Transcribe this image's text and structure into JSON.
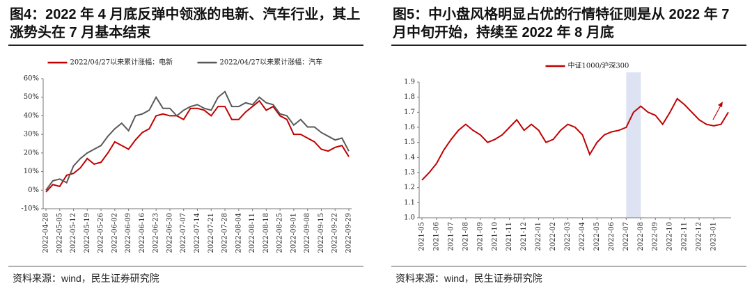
{
  "chart_data": [
    {
      "type": "line",
      "title": "图4：2022 年 4 月底反弹中领涨的电新、汽车行业，其上涨势头在 7 月基本结束",
      "source": "资料来源：wind，民生证券研究院",
      "categories": [
        "2022-04-28",
        null,
        "2022-05-05",
        null,
        "2022-05-12",
        null,
        "2022-05-19",
        null,
        "2022-05-26",
        null,
        "2022-06-02",
        null,
        "2022-06-09",
        null,
        "2022-06-16",
        null,
        "2022-06-23",
        null,
        "2022-06-30",
        null,
        "2022-07-07",
        null,
        "2022-07-14",
        null,
        "2022-07-21",
        null,
        "2022-07-28",
        null,
        "2022-08-04",
        null,
        "2022-08-11",
        null,
        "2022-08-18",
        null,
        "2022-08-25",
        null,
        "2022-09-01",
        null,
        "2022-09-08",
        null,
        "2022-09-15",
        null,
        "2022-09-22",
        null,
        "2022-09-29"
      ],
      "series": [
        {
          "name": "2022/04/27以来累计涨幅：电新",
          "color": "#c00000",
          "values": [
            -1,
            3,
            2,
            8,
            9,
            12,
            17,
            14,
            15,
            20,
            26,
            24,
            22,
            27,
            31,
            33,
            40,
            41,
            40,
            40,
            38,
            44,
            44,
            43,
            40,
            45,
            45,
            38,
            38,
            42,
            45,
            48,
            43,
            45,
            40,
            38,
            30,
            30,
            28,
            26,
            22,
            21,
            23,
            24,
            18
          ]
        },
        {
          "name": "2022/04/27以来累计涨幅：汽车",
          "color": "#595959",
          "values": [
            0,
            5,
            6,
            4,
            13,
            17,
            20,
            22,
            24,
            29,
            33,
            36,
            32,
            40,
            41,
            43,
            50,
            44,
            44,
            40,
            43,
            45,
            46,
            44,
            43,
            50,
            53,
            45,
            45,
            47,
            46,
            50,
            47,
            46,
            41,
            40,
            35,
            38,
            34,
            34,
            31,
            29,
            27,
            28,
            21
          ]
        }
      ],
      "ylim": [
        -10,
        60
      ],
      "yticks": [
        {
          "value": -10,
          "label": "-10%"
        },
        {
          "value": 0,
          "label": "0%"
        },
        {
          "value": 10,
          "label": "10%"
        },
        {
          "value": 20,
          "label": "20%"
        },
        {
          "value": 30,
          "label": "30%"
        },
        {
          "value": 40,
          "label": "40%"
        },
        {
          "value": 50,
          "label": "50%"
        },
        {
          "value": 60,
          "label": "60%"
        }
      ],
      "grid": false,
      "legend": "upper center"
    },
    {
      "type": "line",
      "title": "图5：中小盘风格明显占优的行情特征则是从 2022 年 7 月中旬开始，持续至 2022 年 8 月底",
      "source": "资料来源：wind，民生证券研究院",
      "categories": [
        "2021-05",
        null,
        "2021-06",
        null,
        "2021-07",
        null,
        "2021-08",
        null,
        "2021-09",
        null,
        "2021-10",
        null,
        "2021-11",
        null,
        "2021-12",
        null,
        "2022-01",
        null,
        "2022-02",
        null,
        "2022-03",
        null,
        "2022-04",
        null,
        "2022-05",
        null,
        "2022-06",
        null,
        "2022-07",
        null,
        "2022-08",
        null,
        "2022-09",
        null,
        "2022-10",
        null,
        "2022-11",
        null,
        "2022-12",
        null,
        "2023-01",
        null,
        null
      ],
      "series": [
        {
          "name": "中证1000/沪深300",
          "color": "#c00000",
          "values": [
            1.25,
            1.3,
            1.36,
            1.45,
            1.52,
            1.58,
            1.62,
            1.58,
            1.55,
            1.5,
            1.52,
            1.55,
            1.6,
            1.65,
            1.58,
            1.62,
            1.58,
            1.5,
            1.52,
            1.58,
            1.62,
            1.6,
            1.55,
            1.42,
            1.5,
            1.55,
            1.57,
            1.58,
            1.6,
            1.7,
            1.74,
            1.7,
            1.68,
            1.62,
            1.7,
            1.79,
            1.75,
            1.7,
            1.65,
            1.62,
            1.61,
            1.62,
            1.7
          ]
        }
      ],
      "highlight": [
        "2022-07",
        "2022-08"
      ],
      "ylim": [
        1,
        1.9
      ],
      "yticks": [
        {
          "value": 1,
          "label": "1.0"
        },
        1.1,
        1.2,
        1.3,
        1.4,
        1.5,
        1.6,
        1.7,
        1.8,
        1.9
      ],
      "grid": false,
      "legend": "upper center"
    }
  ]
}
